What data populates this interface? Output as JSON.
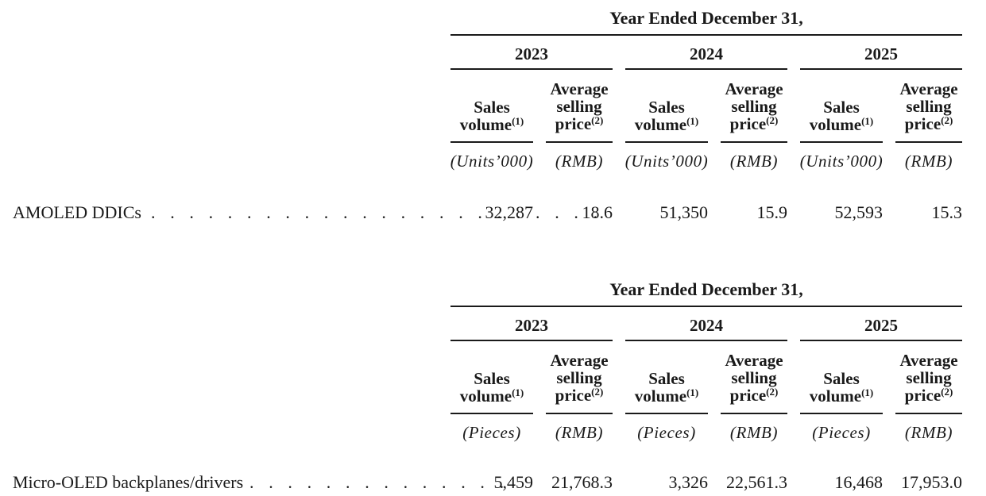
{
  "tables": [
    {
      "header_title": "Year Ended December 31,",
      "years": [
        "2023",
        "2024",
        "2025"
      ],
      "col_headers": {
        "sales_line1": "Sales",
        "sales_line2": "volume",
        "sales_note": "(1)",
        "price_line1": "Average",
        "price_line2": "selling",
        "price_line3": "price",
        "price_note": "(2)"
      },
      "units": {
        "volume": "(Units’000)",
        "price": "(RMB)"
      },
      "row": {
        "label": "AMOLED DDICs",
        "dots": ". . . . . . . . . . . . . . . . . . . . . . . .",
        "values": [
          "32,287",
          "18.6",
          "51,350",
          "15.9",
          "52,593",
          "15.3"
        ]
      }
    },
    {
      "header_title": "Year Ended December 31,",
      "years": [
        "2023",
        "2024",
        "2025"
      ],
      "col_headers": {
        "sales_line1": "Sales",
        "sales_line2": "volume",
        "sales_note": "(1)",
        "price_line1": "Average",
        "price_line2": "selling",
        "price_line3": "price",
        "price_note": "(2)"
      },
      "units": {
        "volume": "(Pieces)",
        "price": "(RMB)"
      },
      "row": {
        "label": "Micro-OLED backplanes/drivers",
        "dots": ". . . . . . . . . . . . . .",
        "values": [
          "5,459",
          "21,768.3",
          "3,326",
          "22,561.3",
          "16,468",
          "17,953.0"
        ]
      }
    }
  ]
}
